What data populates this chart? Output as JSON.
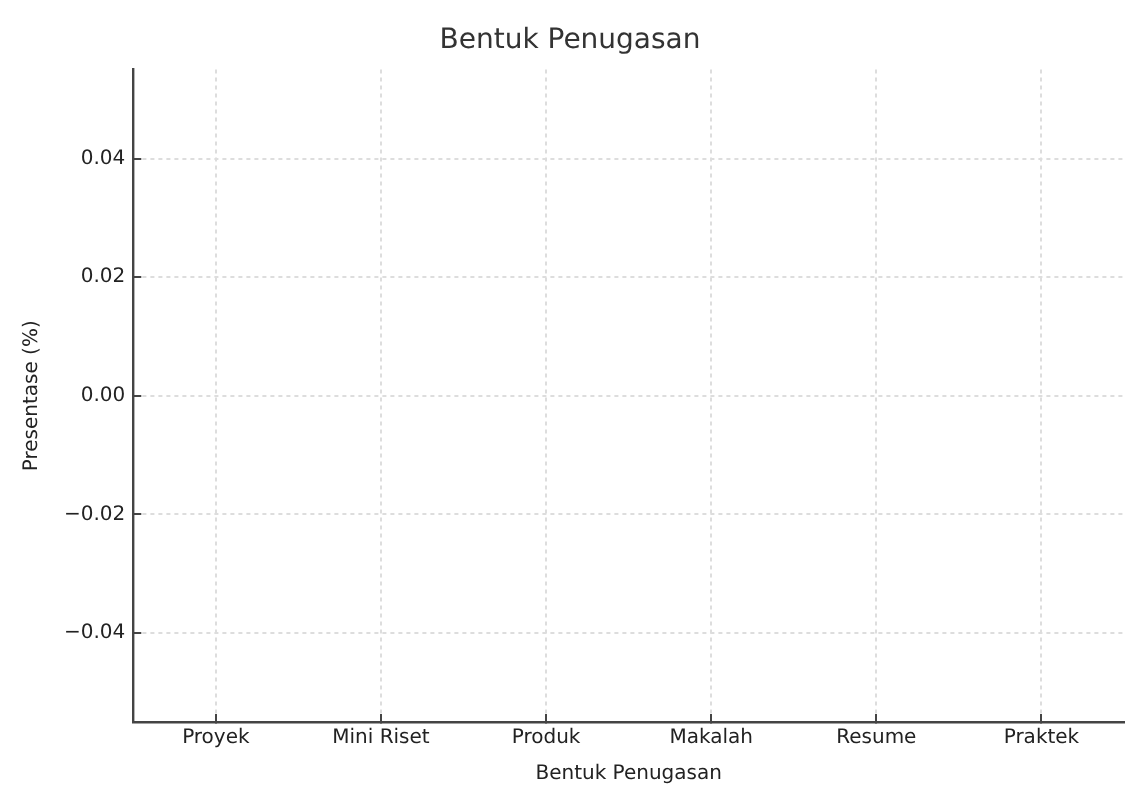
{
  "chart_data": {
    "type": "bar",
    "title": "Bentuk Penugasan",
    "xlabel": "Bentuk Penugasan",
    "ylabel": "Presentase (%)",
    "categories": [
      "Proyek",
      "Mini Riset",
      "Produk",
      "Makalah",
      "Resume",
      "Praktek"
    ],
    "values": [
      0,
      0,
      0,
      0,
      0,
      0
    ],
    "ylim": [
      -0.055,
      0.055
    ],
    "yticks": [
      {
        "value": -0.04,
        "label": "−0.04"
      },
      {
        "value": -0.02,
        "label": "−0.02"
      },
      {
        "value": 0,
        "label": "0.00"
      },
      {
        "value": 0.02,
        "label": "0.02"
      },
      {
        "value": 0.04,
        "label": "0.04"
      }
    ],
    "grid": true
  }
}
